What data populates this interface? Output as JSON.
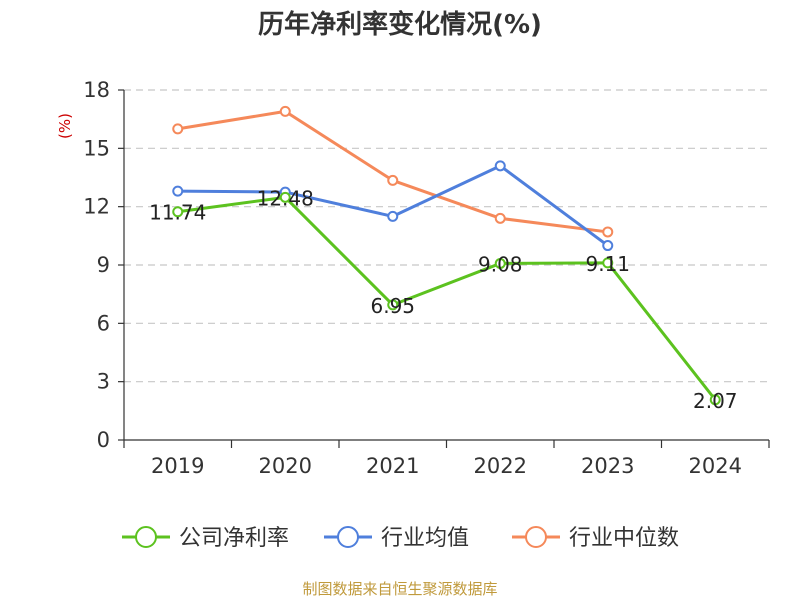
{
  "chart_data": {
    "type": "line",
    "title": "历年净利率变化情况(%)",
    "ylabel": "(%)",
    "xlabel": "",
    "categories": [
      "2019",
      "2020",
      "2021",
      "2022",
      "2023",
      "2024"
    ],
    "ylim": [
      0,
      18
    ],
    "yticks": [
      0,
      3,
      6,
      9,
      12,
      15,
      18
    ],
    "ytick_labels": [
      "0",
      "3",
      "6",
      "9",
      "12",
      "15",
      "18"
    ],
    "grid": true,
    "legend_position": "bottom",
    "series": [
      {
        "name": "公司净利率",
        "color": "#5cc21f",
        "values": [
          11.74,
          12.48,
          6.95,
          9.08,
          9.11,
          2.07
        ],
        "labels": [
          "11.74",
          "12.48",
          "6.95",
          "9.08",
          "9.11",
          "2.07"
        ]
      },
      {
        "name": "行业均值",
        "color": "#4f7fdc",
        "values": [
          12.8,
          12.75,
          11.5,
          14.1,
          10.0,
          null
        ]
      },
      {
        "name": "行业中位数",
        "color": "#f5895a",
        "values": [
          16.0,
          16.9,
          13.35,
          11.4,
          10.7,
          null
        ]
      }
    ],
    "source": "制图数据来自恒生聚源数据库"
  }
}
